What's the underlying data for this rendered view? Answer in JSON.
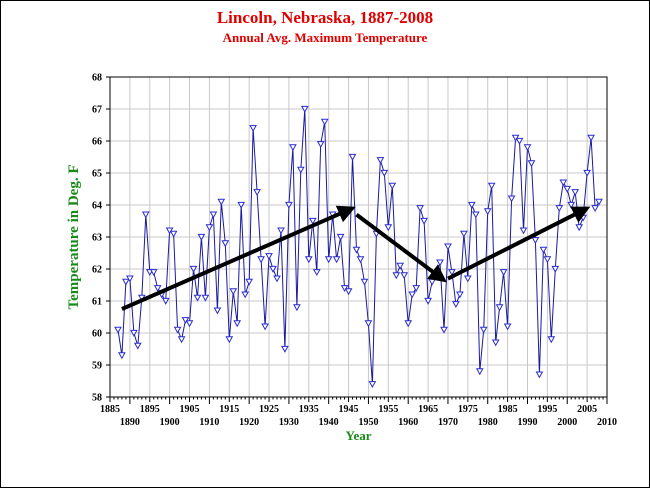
{
  "chart_data": {
    "type": "line",
    "title": "Lincoln, Nebraska, 1887-2008",
    "subtitle": "Annual Avg. Maximum Temperature",
    "xlabel": "Year",
    "ylabel": "Temperature in Deg. F",
    "xlim": [
      1885,
      2010
    ],
    "ylim": [
      58,
      68
    ],
    "x_ticks_top": [
      1885,
      1895,
      1905,
      1915,
      1925,
      1935,
      1945,
      1955,
      1965,
      1975,
      1985,
      1995,
      2005
    ],
    "x_ticks_bottom": [
      1890,
      1900,
      1910,
      1920,
      1930,
      1940,
      1950,
      1960,
      1970,
      1980,
      1990,
      2000,
      2010
    ],
    "y_ticks": [
      58,
      59,
      60,
      61,
      62,
      63,
      64,
      65,
      66,
      67,
      68
    ],
    "grid": true,
    "colors": {
      "line": "#1a1aa0",
      "marker": "#2b2bd0",
      "arrow": "#000000",
      "title": "#e00000",
      "axis_title": "#1a8a1a"
    },
    "series": [
      {
        "marker": "triangle-down",
        "x": [
          1887,
          1888,
          1889,
          1890,
          1891,
          1892,
          1893,
          1894,
          1895,
          1896,
          1897,
          1898,
          1899,
          1900,
          1901,
          1902,
          1903,
          1904,
          1905,
          1906,
          1907,
          1908,
          1909,
          1910,
          1911,
          1912,
          1913,
          1914,
          1915,
          1916,
          1917,
          1918,
          1919,
          1920,
          1921,
          1922,
          1923,
          1924,
          1925,
          1926,
          1927,
          1928,
          1929,
          1930,
          1931,
          1932,
          1933,
          1934,
          1935,
          1936,
          1937,
          1938,
          1939,
          1940,
          1941,
          1942,
          1943,
          1944,
          1945,
          1946,
          1947,
          1948,
          1949,
          1950,
          1951,
          1952,
          1953,
          1954,
          1955,
          1956,
          1957,
          1958,
          1959,
          1960,
          1961,
          1962,
          1963,
          1964,
          1965,
          1966,
          1967,
          1968,
          1969,
          1970,
          1971,
          1972,
          1973,
          1974,
          1975,
          1976,
          1977,
          1978,
          1979,
          1980,
          1981,
          1982,
          1983,
          1984,
          1985,
          1986,
          1987,
          1988,
          1989,
          1990,
          1991,
          1992,
          1993,
          1994,
          1995,
          1996,
          1997,
          1998,
          1999,
          2000,
          2001,
          2002,
          2003,
          2004,
          2005,
          2006,
          2007,
          2008
        ],
        "y": [
          60.1,
          59.3,
          61.6,
          61.7,
          60.0,
          59.6,
          61.1,
          63.7,
          61.9,
          61.9,
          61.4,
          61.2,
          61.0,
          63.2,
          63.1,
          60.1,
          59.8,
          60.4,
          60.3,
          62.0,
          61.1,
          63.0,
          61.1,
          63.3,
          63.7,
          60.7,
          64.1,
          62.8,
          59.8,
          61.3,
          60.3,
          64.0,
          61.2,
          61.6,
          66.4,
          64.4,
          62.3,
          60.2,
          62.4,
          62.0,
          61.7,
          63.2,
          59.5,
          64.0,
          65.8,
          60.8,
          65.1,
          67.0,
          62.3,
          63.5,
          61.9,
          65.9,
          66.6,
          62.3,
          63.7,
          62.3,
          63.0,
          61.4,
          61.3,
          65.5,
          62.6,
          62.3,
          61.6,
          60.3,
          58.4,
          63.1,
          65.4,
          65.0,
          63.3,
          64.6,
          61.8,
          62.1,
          61.8,
          60.3,
          61.2,
          61.4,
          63.9,
          63.5,
          61.0,
          61.6,
          61.8,
          62.2,
          60.1,
          62.7,
          61.9,
          60.9,
          61.2,
          63.1,
          61.7,
          64.0,
          63.7,
          58.8,
          60.1,
          63.8,
          64.6,
          59.7,
          60.8,
          61.9,
          60.2,
          64.2,
          66.1,
          66.0,
          63.2,
          65.8,
          65.3,
          62.9,
          58.7,
          62.6,
          62.3,
          59.8,
          62.0,
          63.9,
          64.7,
          64.5,
          64.0,
          64.4,
          63.3,
          63.6,
          65.0,
          66.1,
          63.9,
          64.1
        ]
      }
    ],
    "arrows": [
      {
        "from": [
          1888,
          60.75
        ],
        "to": [
          1946,
          63.9
        ]
      },
      {
        "from": [
          1947,
          63.7
        ],
        "to": [
          1969,
          61.65
        ]
      },
      {
        "from": [
          1970,
          61.7
        ],
        "to": [
          2005,
          63.9
        ]
      }
    ]
  }
}
